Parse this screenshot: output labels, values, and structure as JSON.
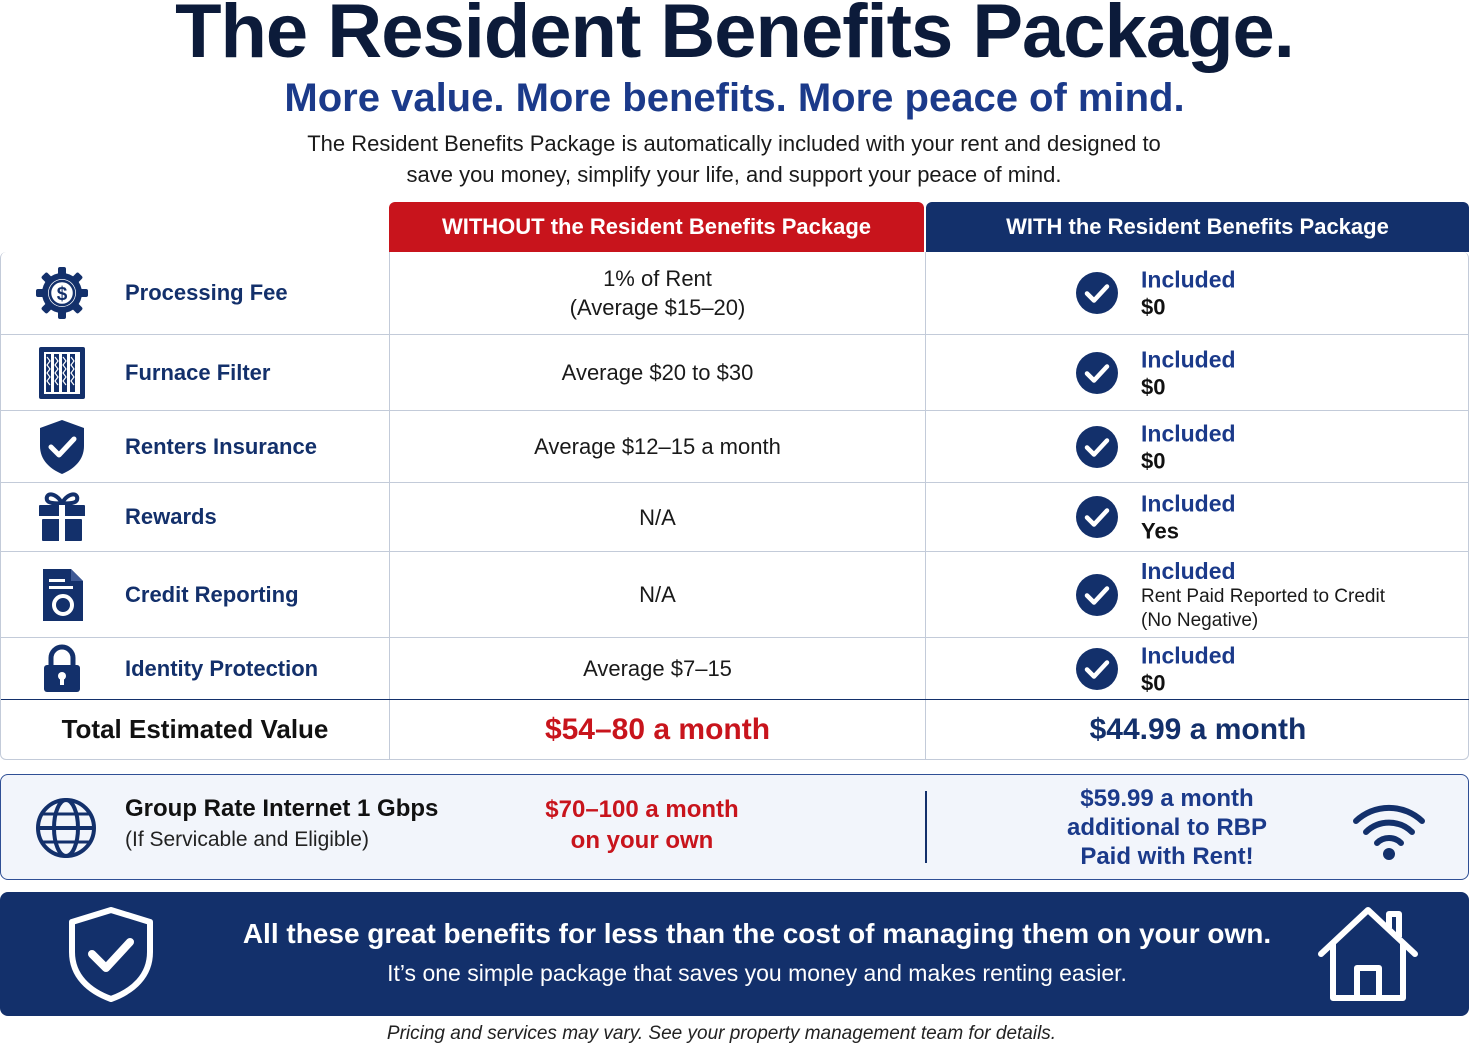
{
  "header": {
    "title": "The Resident Benefits Package.",
    "subtitle": "More value. More benefits. More peace of mind.",
    "intro_line1": "The Resident Benefits Package is automatically included with your rent and designed to",
    "intro_line2": "save you money, simplify your life, and support your peace of mind."
  },
  "columns": {
    "without": "WITHOUT the Resident Benefits Package",
    "with": "WITH the Resident Benefits Package"
  },
  "rows": [
    {
      "label": "Processing Fee",
      "icon": "dollar-gear-icon",
      "without_line1": "1% of Rent",
      "without_line2": "(Average $15–20)",
      "status": "Included",
      "value": "$0"
    },
    {
      "label": "Furnace Filter",
      "icon": "filter-icon",
      "without_line1": "Average $20 to $30",
      "without_line2": "",
      "status": "Included",
      "value": "$0"
    },
    {
      "label": "Renters Insurance",
      "icon": "shield-check-icon",
      "without_line1": "Average $12–15 a month",
      "without_line2": "",
      "status": "Included",
      "value": "$0"
    },
    {
      "label": "Rewards",
      "icon": "gift-icon",
      "without_line1": "N/A",
      "without_line2": "",
      "status": "Included",
      "value": "Yes"
    },
    {
      "label": "Credit Reporting",
      "icon": "credit-report-icon",
      "without_line1": "N/A",
      "without_line2": "",
      "status": "Included",
      "value_line1": "Rent Paid Reported to Credit",
      "value_line2": "(No Negative)"
    },
    {
      "label": "Identity Protection",
      "icon": "lock-icon",
      "without_line1": "Average $7–15",
      "without_line2": "",
      "status": "Included",
      "value": "$0"
    }
  ],
  "total": {
    "label": "Total Estimated Value",
    "without": "$54–80 a month",
    "with": "$44.99 a month"
  },
  "internet": {
    "title": "Group Rate Internet 1 Gbps",
    "subtitle": "(If Servicable and Eligible)",
    "own_price_line1": "$70–100 a month",
    "own_price_line2": "on your own",
    "rbp_line1": "$59.99 a month",
    "rbp_line2": "additional to RBP",
    "rbp_line3": "Paid with Rent!",
    "icon": "wifi-icon"
  },
  "banner": {
    "title": "All these great benefits for less than the cost of managing them on your own.",
    "subtitle": "It’s one simple package that saves you money and makes renting easier."
  },
  "footnote": "Pricing and services may vary. See your property management team for details.",
  "colors": {
    "navy": "#13306b",
    "red": "#c8141c",
    "blue_text": "#1b3a8a"
  }
}
